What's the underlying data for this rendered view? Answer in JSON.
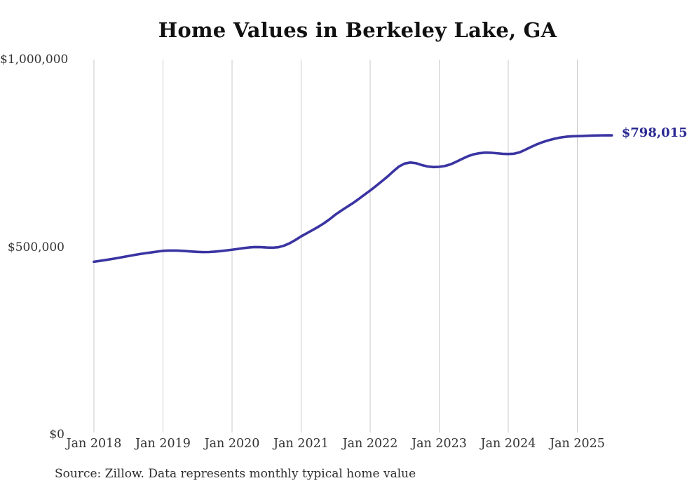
{
  "chart_data": {
    "type": "line",
    "title": "Home Values in Berkeley Lake, GA",
    "source_note": "Source: Zillow. Data represents monthly typical home value",
    "series_name": "Typical home value",
    "x_start": "Jan 2018",
    "x_interval": "month",
    "current_value": 798015,
    "current_value_label": "$798,015",
    "ylim": [
      0,
      1000000
    ],
    "grid": "vertical-only",
    "colors": {
      "line": "#3a34a2",
      "value_label": "#2b2a92",
      "grid": "#c9c9c9",
      "axis_text": "#333333",
      "title_text": "#111111"
    },
    "yticks": [
      {
        "label": "$1,000,000",
        "value": 1000000
      },
      {
        "label": "$500,000",
        "value": 500000
      },
      {
        "label": "$0",
        "value": 0
      }
    ],
    "xticks": [
      {
        "label": "Jan 2018",
        "month_index": 0
      },
      {
        "label": "Jan 2019",
        "month_index": 12
      },
      {
        "label": "Jan 2020",
        "month_index": 24
      },
      {
        "label": "Jan 2021",
        "month_index": 36
      },
      {
        "label": "Jan 2022",
        "month_index": 48
      },
      {
        "label": "Jan 2023",
        "month_index": 60
      },
      {
        "label": "Jan 2024",
        "month_index": 72
      },
      {
        "label": "Jan 2025",
        "month_index": 84
      }
    ],
    "values": [
      461000,
      463200,
      465500,
      468000,
      470600,
      473300,
      476200,
      479000,
      481600,
      483900,
      485900,
      488100,
      490000,
      490800,
      490900,
      490300,
      489300,
      488200,
      487200,
      486700,
      486900,
      487900,
      489300,
      491100,
      493000,
      495100,
      497300,
      499100,
      500100,
      499900,
      498900,
      498400,
      499600,
      503600,
      510200,
      518800,
      528500,
      537000,
      545500,
      554200,
      563800,
      574800,
      587000,
      597500,
      607500,
      617200,
      628200,
      639600,
      650800,
      662800,
      675200,
      687800,
      701800,
      714800,
      722800,
      725600,
      723600,
      718600,
      715000,
      713400,
      714000,
      716400,
      720800,
      727800,
      735200,
      742400,
      747400,
      750400,
      752000,
      751600,
      750200,
      748800,
      748200,
      749000,
      752800,
      759800,
      767200,
      774200,
      780000,
      784800,
      788800,
      792000,
      794200,
      795400,
      795900,
      796400,
      797000,
      797500,
      797900,
      798100,
      798015
    ]
  }
}
